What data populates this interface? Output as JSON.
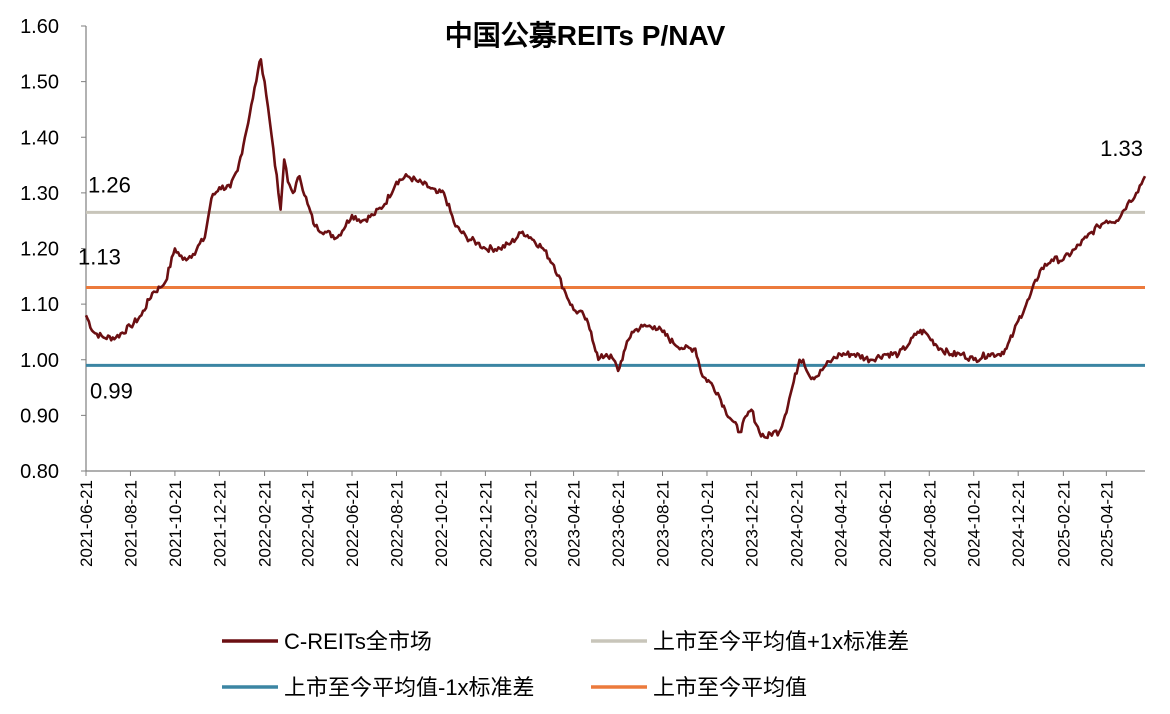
{
  "chart_data": {
    "type": "line",
    "title": "中国公募REITs P/NAV",
    "xlabel": "",
    "ylabel": "",
    "ylim": [
      0.8,
      1.6
    ],
    "yticks": [
      "0.80",
      "0.90",
      "1.00",
      "1.10",
      "1.20",
      "1.30",
      "1.40",
      "1.50",
      "1.60"
    ],
    "x_range": [
      "2021-06-21",
      "2025-06-13"
    ],
    "xticks": [
      "2021-06-21",
      "2021-08-21",
      "2021-10-21",
      "2021-12-21",
      "2022-02-21",
      "2022-04-21",
      "2022-06-21",
      "2022-08-21",
      "2022-10-21",
      "2022-12-21",
      "2023-02-21",
      "2023-04-21",
      "2023-06-21",
      "2023-08-21",
      "2023-10-21",
      "2023-12-21",
      "2024-02-21",
      "2024-04-21",
      "2024-06-21",
      "2024-08-21",
      "2024-10-21",
      "2024-12-21",
      "2025-02-21",
      "2025-04-21"
    ],
    "grid": false,
    "legend_position": "bottom",
    "series": [
      {
        "name": "C-REITs全市场",
        "color": "#6b0f12",
        "points": [
          [
            "2021-06-21",
            1.08
          ],
          [
            "2021-07-01",
            1.05
          ],
          [
            "2021-07-15",
            1.04
          ],
          [
            "2021-08-01",
            1.04
          ],
          [
            "2021-08-21",
            1.06
          ],
          [
            "2021-09-05",
            1.08
          ],
          [
            "2021-09-20",
            1.12
          ],
          [
            "2021-10-01",
            1.13
          ],
          [
            "2021-10-08",
            1.14
          ],
          [
            "2021-10-21",
            1.2
          ],
          [
            "2021-11-01",
            1.18
          ],
          [
            "2021-11-15",
            1.19
          ],
          [
            "2021-12-01",
            1.22
          ],
          [
            "2021-12-10",
            1.29
          ],
          [
            "2021-12-21",
            1.31
          ],
          [
            "2022-01-05",
            1.31
          ],
          [
            "2022-01-15",
            1.34
          ],
          [
            "2022-01-25",
            1.4
          ],
          [
            "2022-02-05",
            1.47
          ],
          [
            "2022-02-12",
            1.52
          ],
          [
            "2022-02-16",
            1.54
          ],
          [
            "2022-02-21",
            1.5
          ],
          [
            "2022-02-28",
            1.43
          ],
          [
            "2022-03-05",
            1.38
          ],
          [
            "2022-03-12",
            1.3
          ],
          [
            "2022-03-15",
            1.27
          ],
          [
            "2022-03-20",
            1.36
          ],
          [
            "2022-03-25",
            1.32
          ],
          [
            "2022-04-01",
            1.3
          ],
          [
            "2022-04-10",
            1.33
          ],
          [
            "2022-04-21",
            1.28
          ],
          [
            "2022-05-01",
            1.24
          ],
          [
            "2022-05-15",
            1.23
          ],
          [
            "2022-06-01",
            1.22
          ],
          [
            "2022-06-21",
            1.26
          ],
          [
            "2022-07-05",
            1.25
          ],
          [
            "2022-07-20",
            1.26
          ],
          [
            "2022-08-05",
            1.28
          ],
          [
            "2022-08-21",
            1.32
          ],
          [
            "2022-09-05",
            1.33
          ],
          [
            "2022-09-20",
            1.32
          ],
          [
            "2022-10-05",
            1.31
          ],
          [
            "2022-10-15",
            1.3
          ],
          [
            "2022-10-25",
            1.3
          ],
          [
            "2022-11-10",
            1.24
          ],
          [
            "2022-11-25",
            1.22
          ],
          [
            "2022-12-10",
            1.21
          ],
          [
            "2022-12-21",
            1.2
          ],
          [
            "2023-01-10",
            1.2
          ],
          [
            "2023-01-25",
            1.21
          ],
          [
            "2023-02-10",
            1.23
          ],
          [
            "2023-02-21",
            1.22
          ],
          [
            "2023-03-10",
            1.2
          ],
          [
            "2023-03-25",
            1.17
          ],
          [
            "2023-04-10",
            1.12
          ],
          [
            "2023-04-21",
            1.09
          ],
          [
            "2023-05-05",
            1.08
          ],
          [
            "2023-05-15",
            1.05
          ],
          [
            "2023-05-25",
            1.0
          ],
          [
            "2023-06-05",
            1.01
          ],
          [
            "2023-06-15",
            1.0
          ],
          [
            "2023-06-21",
            0.98
          ],
          [
            "2023-07-01",
            1.02
          ],
          [
            "2023-07-10",
            1.05
          ],
          [
            "2023-07-25",
            1.06
          ],
          [
            "2023-08-10",
            1.06
          ],
          [
            "2023-08-21",
            1.05
          ],
          [
            "2023-09-05",
            1.03
          ],
          [
            "2023-09-20",
            1.02
          ],
          [
            "2023-10-05",
            1.02
          ],
          [
            "2023-10-15",
            0.97
          ],
          [
            "2023-10-25",
            0.96
          ],
          [
            "2023-11-05",
            0.94
          ],
          [
            "2023-11-15",
            0.91
          ],
          [
            "2023-11-25",
            0.89
          ],
          [
            "2023-12-05",
            0.87
          ],
          [
            "2023-12-15",
            0.9
          ],
          [
            "2023-12-21",
            0.91
          ],
          [
            "2024-01-01",
            0.87
          ],
          [
            "2024-01-10",
            0.86
          ],
          [
            "2024-01-20",
            0.87
          ],
          [
            "2024-01-28",
            0.87
          ],
          [
            "2024-02-05",
            0.9
          ],
          [
            "2024-02-15",
            0.95
          ],
          [
            "2024-02-25",
            1.0
          ],
          [
            "2024-03-01",
            1.0
          ],
          [
            "2024-03-10",
            0.97
          ],
          [
            "2024-03-20",
            0.97
          ],
          [
            "2024-04-01",
            0.99
          ],
          [
            "2024-04-10",
            1.0
          ],
          [
            "2024-04-21",
            1.01
          ],
          [
            "2024-05-10",
            1.01
          ],
          [
            "2024-06-01",
            1.0
          ],
          [
            "2024-06-21",
            1.01
          ],
          [
            "2024-07-10",
            1.01
          ],
          [
            "2024-07-25",
            1.03
          ],
          [
            "2024-08-05",
            1.05
          ],
          [
            "2024-08-15",
            1.05
          ],
          [
            "2024-08-21",
            1.04
          ],
          [
            "2024-09-05",
            1.02
          ],
          [
            "2024-09-20",
            1.01
          ],
          [
            "2024-10-05",
            1.01
          ],
          [
            "2024-10-21",
            1.0
          ],
          [
            "2024-11-10",
            1.01
          ],
          [
            "2024-11-25",
            1.01
          ],
          [
            "2024-12-05",
            1.02
          ],
          [
            "2024-12-15",
            1.05
          ],
          [
            "2024-12-21",
            1.07
          ],
          [
            "2025-01-05",
            1.11
          ],
          [
            "2025-01-20",
            1.16
          ],
          [
            "2025-02-05",
            1.18
          ],
          [
            "2025-02-21",
            1.18
          ],
          [
            "2025-03-10",
            1.2
          ],
          [
            "2025-03-25",
            1.22
          ],
          [
            "2025-04-10",
            1.24
          ],
          [
            "2025-04-21",
            1.25
          ],
          [
            "2025-05-05",
            1.25
          ],
          [
            "2025-05-20",
            1.28
          ],
          [
            "2025-06-01",
            1.3
          ],
          [
            "2025-06-13",
            1.33
          ]
        ]
      },
      {
        "name": "上市至今平均值+1x标准差",
        "color": "#c8c5ba",
        "value": 1.265
      },
      {
        "name": "上市至今平均值-1x标准差",
        "color": "#3b85a3",
        "value": 0.99
      },
      {
        "name": "上市至今平均值",
        "color": "#ec7a3c",
        "value": 1.13
      }
    ],
    "legend_order": [
      0,
      1,
      2,
      3
    ],
    "annotations": [
      {
        "text": "1.26",
        "series": 1
      },
      {
        "text": "1.13",
        "series": 3
      },
      {
        "text": "0.99",
        "series": 2
      },
      {
        "text": "1.33",
        "series": 0
      }
    ]
  }
}
